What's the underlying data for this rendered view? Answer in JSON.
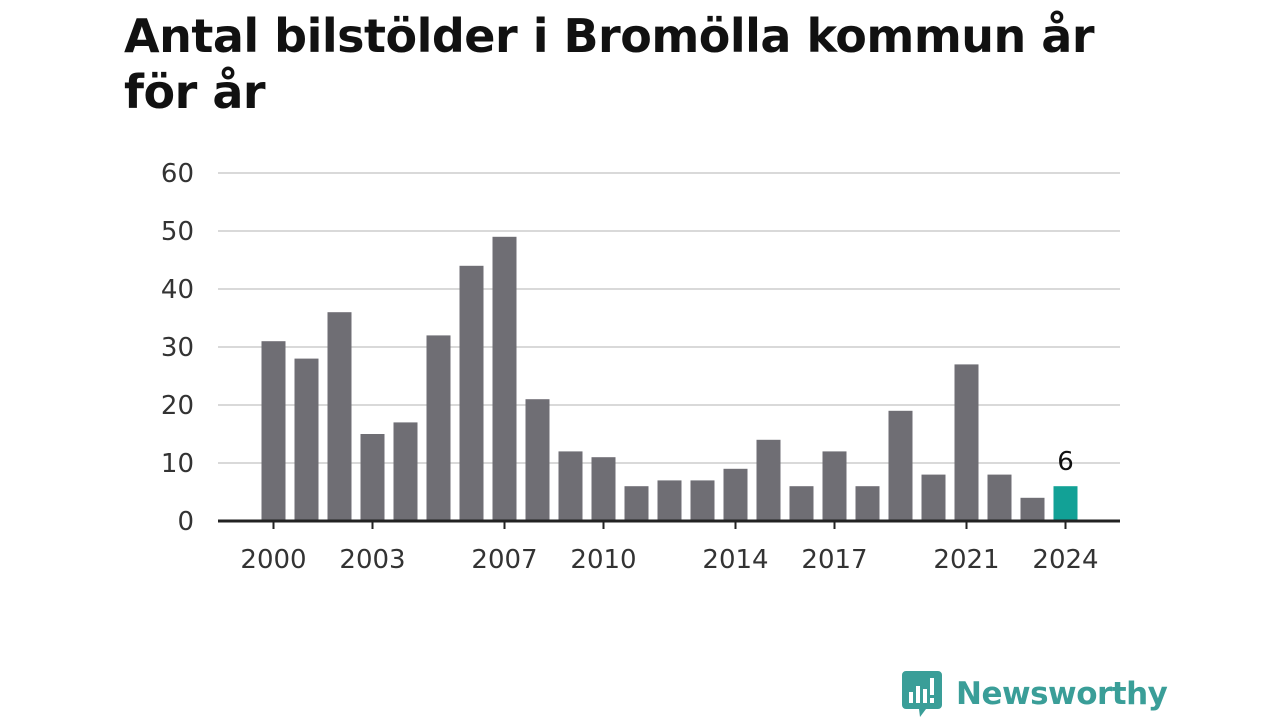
{
  "title": "Antal bilstölder i Bromölla kommun år för år",
  "brand": {
    "name": "Newsworthy",
    "icon": "newsworthy-logo-icon",
    "color": "#3a9e98"
  },
  "colors": {
    "bar": "#6f6e74",
    "highlight": "#12a196",
    "grid": "#d9d9d9",
    "axis": "#222222",
    "text": "#333333"
  },
  "chart_data": {
    "type": "bar",
    "title": "Antal bilstölder i Bromölla kommun år för år",
    "xlabel": "",
    "ylabel": "",
    "ylim": [
      0,
      60
    ],
    "yticks": [
      0,
      10,
      20,
      30,
      40,
      50,
      60
    ],
    "grid": true,
    "legend": "none",
    "categories": [
      2000,
      2001,
      2002,
      2003,
      2004,
      2005,
      2006,
      2007,
      2008,
      2009,
      2010,
      2011,
      2012,
      2013,
      2014,
      2015,
      2016,
      2017,
      2018,
      2019,
      2020,
      2021,
      2022,
      2023,
      2024
    ],
    "values": [
      31,
      28,
      36,
      15,
      17,
      32,
      44,
      49,
      21,
      12,
      11,
      6,
      7,
      7,
      9,
      14,
      6,
      12,
      6,
      19,
      8,
      27,
      8,
      4,
      6
    ],
    "xtick_labels": [
      "2000",
      "2003",
      "2007",
      "2010",
      "2014",
      "2017",
      "2021",
      "2024"
    ],
    "highlight": {
      "category": 2024,
      "value": 6,
      "label": "6"
    }
  }
}
